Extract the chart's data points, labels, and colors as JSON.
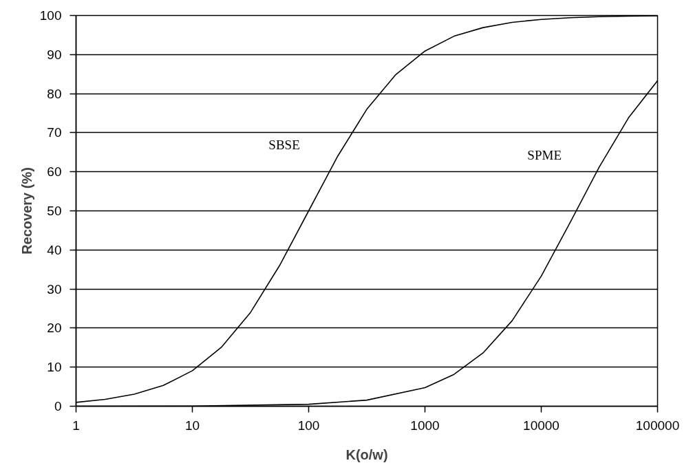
{
  "chart_data": {
    "type": "line",
    "xlabel": "K(o/w)",
    "ylabel": "Recovery (%)",
    "log": "x",
    "xlim": [
      1,
      100000
    ],
    "xticks": [
      1,
      10,
      100,
      1000,
      10000,
      100000
    ],
    "ylim": [
      0,
      100
    ],
    "yticks": [
      0,
      10,
      20,
      30,
      40,
      50,
      60,
      70,
      80,
      90,
      100
    ],
    "grid": "y",
    "legend": false,
    "marker": "none",
    "line_style": "solid",
    "series": [
      {
        "name": "SBSE",
        "color": "#000000",
        "x": [
          1,
          1.778,
          3.162,
          5.623,
          10,
          17.78,
          31.62,
          56.23,
          100,
          177.8,
          316.2,
          562.3,
          1000,
          1778,
          3162,
          5623,
          10000,
          17780,
          31620,
          56230,
          100000
        ],
        "values": [
          0.99,
          1.75,
          3.07,
          5.32,
          9.09,
          15.1,
          24.0,
          36.0,
          50.0,
          64.0,
          76.0,
          84.9,
          90.9,
          94.7,
          96.9,
          98.25,
          99.0,
          99.44,
          99.68,
          99.82,
          99.9
        ]
      },
      {
        "name": "SPME",
        "color": "#000000",
        "x": [
          1,
          10,
          100,
          316.2,
          1000,
          1778,
          3162,
          5623,
          10000,
          17780,
          31620,
          56230,
          100000
        ],
        "values": [
          0.005,
          0.05,
          0.5,
          1.56,
          4.76,
          8.16,
          13.65,
          21.9,
          33.3,
          47.1,
          61.3,
          73.8,
          83.3
        ]
      }
    ]
  }
}
